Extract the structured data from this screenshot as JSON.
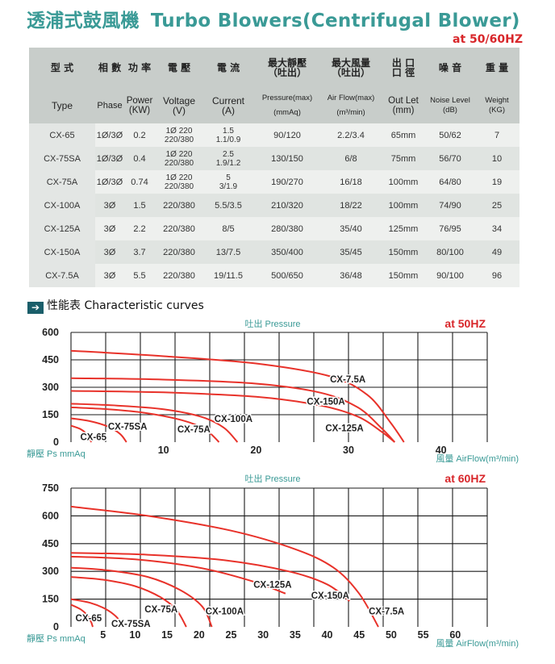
{
  "title": {
    "cn": "透浦式鼓風機",
    "en": "Turbo Blowers(Centrifugal Blower)"
  },
  "spec_at": "at 50/60HZ",
  "table": {
    "headers_cn": [
      "型 式",
      "相 數",
      "功 率",
      "電 壓",
      "電 流",
      "最大靜壓\n（吐出）",
      "最大風量\n（吐出）",
      "出 口\n口 徑",
      "噪 音",
      "重 量"
    ],
    "headers_en": [
      "Type",
      "Phase",
      "Power\n(KW)",
      "Voltage\n(V)",
      "Current\n(A)",
      "Pressure(max)\n(mmAq)",
      "Air Flow(max)\n(m³/min)",
      "Out Let\n(mm)",
      "Noise Level\n(dB)",
      "Weight\n(KG)"
    ],
    "rows": [
      [
        "CX-65",
        "1Ø/3Ø",
        "0.2",
        "1Ø 220\n220/380",
        "1.5\n1.1/0.9",
        "90/120",
        "2.2/3.4",
        "65mm",
        "50/62",
        "7"
      ],
      [
        "CX-75SA",
        "1Ø/3Ø",
        "0.4",
        "1Ø 220\n220/380",
        "2.5\n1.9/1.2",
        "130/150",
        "6/8",
        "75mm",
        "56/70",
        "10"
      ],
      [
        "CX-75A",
        "1Ø/3Ø",
        "0.74",
        "1Ø 220\n220/380",
        "5\n3/1.9",
        "190/270",
        "16/18",
        "100mm",
        "64/80",
        "19"
      ],
      [
        "CX-100A",
        "3Ø",
        "1.5",
        "220/380",
        "5.5/3.5",
        "210/320",
        "18/22",
        "100mm",
        "74/90",
        "25"
      ],
      [
        "CX-125A",
        "3Ø",
        "2.2",
        "220/380",
        "8/5",
        "280/380",
        "35/40",
        "125mm",
        "76/95",
        "34"
      ],
      [
        "CX-150A",
        "3Ø",
        "3.7",
        "220/380",
        "13/7.5",
        "350/400",
        "35/45",
        "150mm",
        "80/100",
        "49"
      ],
      [
        "CX-7.5A",
        "3Ø",
        "5.5",
        "220/380",
        "19/11.5",
        "500/650",
        "36/48",
        "150mm",
        "90/100",
        "96"
      ]
    ]
  },
  "section_title": "性能表 Characteristic curves",
  "chart_data": [
    {
      "type": "line",
      "title": "at 50HZ",
      "top_label": "吐出 Pressure",
      "ylabel": "靜壓 Ps mmAq",
      "xlabel": "風量 AirFlow(m³/min)",
      "xlim": [
        0,
        45
      ],
      "ylim": [
        0,
        600
      ],
      "x_ticks": [
        10,
        20,
        30,
        40
      ],
      "y_ticks": [
        0,
        150,
        300,
        450,
        600
      ],
      "line_color": "#e8322a",
      "series": [
        {
          "name": "CX-65",
          "x": [
            0,
            1.0,
            1.6,
            2.0,
            2.2
          ],
          "y": [
            90,
            72,
            50,
            22,
            0
          ]
        },
        {
          "name": "CX-75SA",
          "x": [
            0,
            2.0,
            4.0,
            5.3,
            6.0
          ],
          "y": [
            130,
            115,
            85,
            45,
            0
          ]
        },
        {
          "name": "CX-75A",
          "x": [
            0,
            4,
            8,
            12,
            14.5,
            16
          ],
          "y": [
            190,
            180,
            160,
            120,
            70,
            0
          ]
        },
        {
          "name": "CX-100A",
          "x": [
            0,
            5,
            10,
            14,
            16.5,
            18
          ],
          "y": [
            210,
            200,
            180,
            140,
            80,
            0
          ]
        },
        {
          "name": "CX-125A",
          "x": [
            0,
            10,
            20,
            27,
            31,
            33.5,
            35
          ],
          "y": [
            280,
            272,
            248,
            200,
            140,
            60,
            0
          ]
        },
        {
          "name": "CX-150A",
          "x": [
            0,
            10,
            20,
            27,
            31,
            33.5,
            35
          ],
          "y": [
            350,
            342,
            320,
            270,
            190,
            80,
            0
          ]
        },
        {
          "name": "CX-7.5A",
          "x": [
            0,
            10,
            20,
            28,
            32,
            34.5,
            36
          ],
          "y": [
            500,
            470,
            430,
            360,
            260,
            110,
            0
          ]
        }
      ],
      "labels": [
        {
          "text": "CX-65",
          "x": 1.0,
          "y": 28
        },
        {
          "text": "CX-75SA",
          "x": 4.0,
          "y": 85
        },
        {
          "text": "CX-75A",
          "x": 11.5,
          "y": 70
        },
        {
          "text": "CX-100A",
          "x": 15.5,
          "y": 128
        },
        {
          "text": "CX-125A",
          "x": 27.5,
          "y": 78
        },
        {
          "text": "CX-150A",
          "x": 25.5,
          "y": 222
        },
        {
          "text": "CX-7.5A",
          "x": 28.0,
          "y": 345
        }
      ]
    },
    {
      "type": "line",
      "title": "at 60HZ",
      "top_label": "吐出 Pressure",
      "ylabel": "靜壓 Ps mmAq",
      "xlabel": "風量 AirFlow(m³/min)",
      "xlim": [
        0,
        65
      ],
      "ylim": [
        0,
        750
      ],
      "x_ticks": [
        5,
        10,
        15,
        20,
        25,
        30,
        35,
        40,
        45,
        50,
        55,
        60
      ],
      "y_ticks": [
        0,
        150,
        300,
        450,
        600,
        750
      ],
      "line_color": "#e8322a",
      "series": [
        {
          "name": "CX-65",
          "x": [
            0,
            1.5,
            2.5,
            3.1,
            3.4
          ],
          "y": [
            120,
            95,
            65,
            30,
            0
          ]
        },
        {
          "name": "CX-75SA",
          "x": [
            0,
            3,
            5.5,
            7.2,
            8.0
          ],
          "y": [
            150,
            130,
            95,
            50,
            0
          ]
        },
        {
          "name": "CX-75A",
          "x": [
            0,
            5,
            10,
            14,
            16.5,
            18
          ],
          "y": [
            270,
            255,
            220,
            160,
            90,
            0
          ]
        },
        {
          "name": "CX-100A",
          "x": [
            0,
            6,
            12,
            17,
            20.5,
            22
          ],
          "y": [
            320,
            305,
            270,
            200,
            110,
            0
          ]
        },
        {
          "name": "CX-125A",
          "x": [
            0,
            10,
            20,
            28,
            33.5
          ],
          "y": [
            380,
            365,
            320,
            250,
            180
          ]
        },
        {
          "name": "CX-150A",
          "x": [
            0,
            12,
            24,
            34,
            40,
            43.5
          ],
          "y": [
            400,
            390,
            360,
            300,
            230,
            140
          ]
        },
        {
          "name": "CX-7.5A",
          "x": [
            0,
            12,
            25,
            35,
            41,
            45,
            48
          ],
          "y": [
            650,
            600,
            520,
            420,
            320,
            180,
            0
          ]
        }
      ],
      "labels": [
        {
          "text": "CX-65",
          "x": 0.7,
          "y": 48
        },
        {
          "text": "CX-75SA",
          "x": 6.3,
          "y": 18
        },
        {
          "text": "CX-75A",
          "x": 11.5,
          "y": 95
        },
        {
          "text": "CX-100A",
          "x": 21.0,
          "y": 85
        },
        {
          "text": "CX-125A",
          "x": 28.5,
          "y": 230
        },
        {
          "text": "CX-150A",
          "x": 37.5,
          "y": 170
        },
        {
          "text": "CX-7.5A",
          "x": 46.5,
          "y": 85
        }
      ]
    }
  ]
}
